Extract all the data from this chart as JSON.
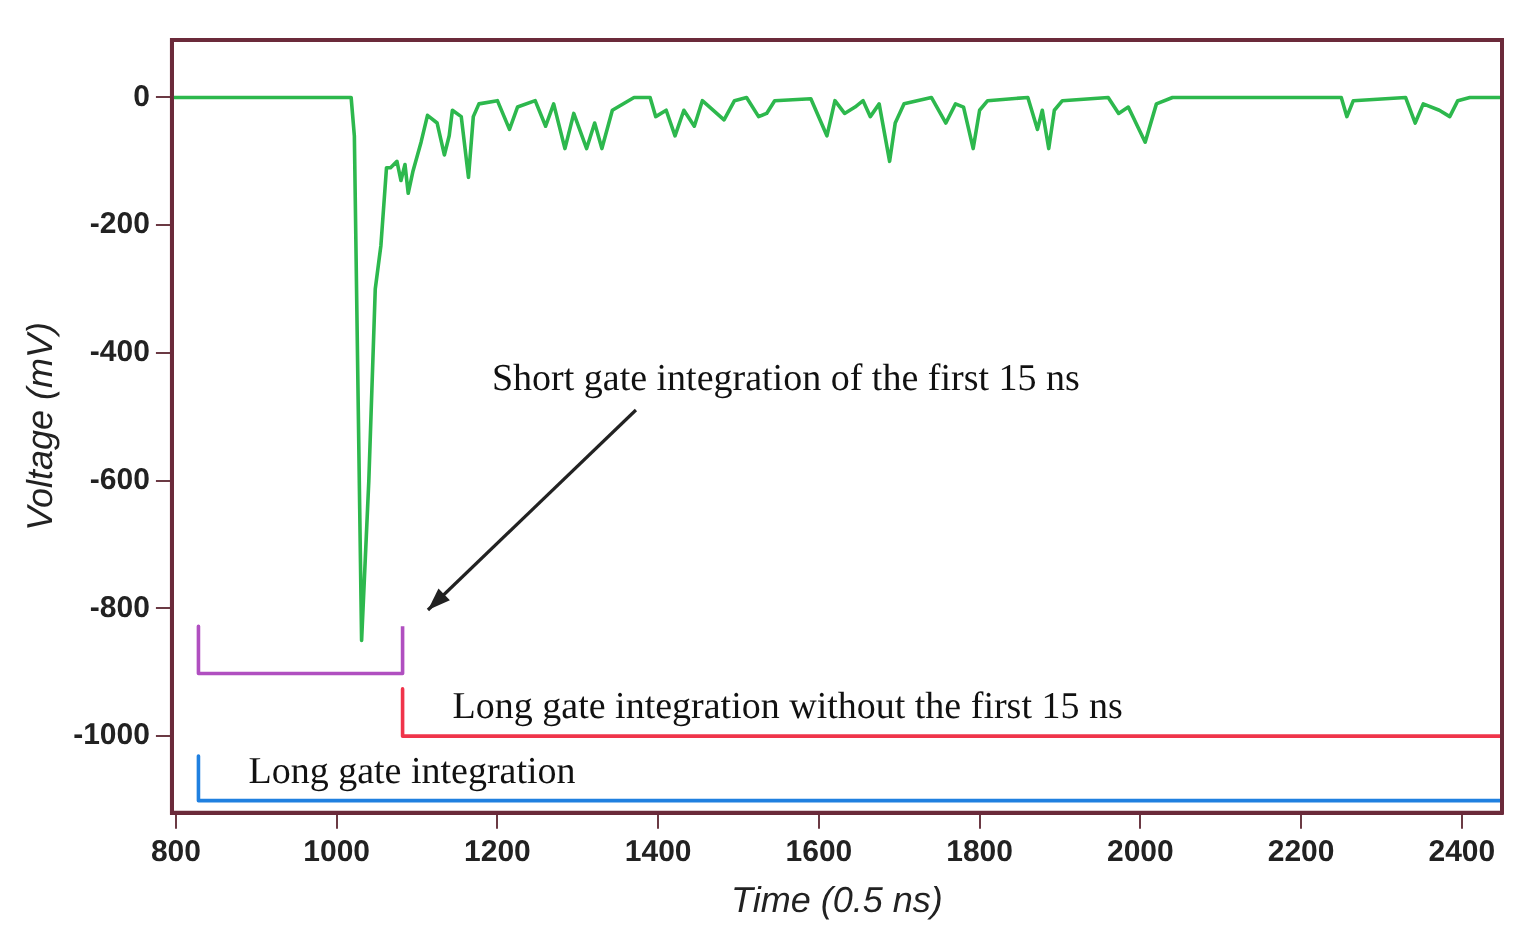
{
  "chart_data": {
    "type": "line",
    "xlabel": "Time (0.5 ns)",
    "ylabel": "Voltage (mV)",
    "xlim": [
      795,
      2450
    ],
    "ylim": [
      -1120,
      90
    ],
    "xticks": [
      800,
      1000,
      1200,
      1400,
      1600,
      1800,
      2000,
      2200,
      2400
    ],
    "yticks": [
      -1000,
      -800,
      -600,
      -400,
      -200,
      0
    ],
    "grid": false,
    "legend": false,
    "marker": "none",
    "line_style": "solid",
    "annotations": [
      "Short gate integration of the first 15 ns"
    ],
    "series": [
      {
        "color": "#2db84d",
        "x": [
          795,
          1018,
          1022,
          1027,
          1031,
          1040,
          1048,
          1055,
          1062,
          1067,
          1075,
          1080,
          1085,
          1089,
          1095,
          1105,
          1113,
          1125,
          1134,
          1140,
          1144,
          1155,
          1164,
          1170,
          1177,
          1200,
          1215,
          1225,
          1247,
          1260,
          1270,
          1284,
          1295,
          1311,
          1321,
          1330,
          1343,
          1370,
          1390,
          1397,
          1410,
          1421,
          1432,
          1445,
          1455,
          1482,
          1495,
          1510,
          1525,
          1535,
          1545,
          1590,
          1610,
          1620,
          1632,
          1645,
          1655,
          1664,
          1675,
          1688,
          1695,
          1706,
          1740,
          1758,
          1770,
          1780,
          1792,
          1800,
          1810,
          1860,
          1872,
          1878,
          1886,
          1893,
          1903,
          1960,
          1973,
          1985,
          2006,
          2020,
          2040,
          2250,
          2257,
          2265,
          2330,
          2342,
          2352,
          2372,
          2385,
          2395,
          2410,
          2450
        ],
        "values": [
          0,
          0,
          -60,
          -500,
          -850,
          -600,
          -300,
          -232,
          -110,
          -110,
          -100,
          -130,
          -105,
          -150,
          -115,
          -70,
          -28,
          -40,
          -90,
          -60,
          -20,
          -30,
          -125,
          -30,
          -10,
          -5,
          -50,
          -15,
          -5,
          -45,
          -10,
          -80,
          -25,
          -80,
          -40,
          -80,
          -20,
          0,
          0,
          -30,
          -20,
          -60,
          -20,
          -45,
          -5,
          -35,
          -5,
          0,
          -30,
          -25,
          -5,
          -2,
          -60,
          -5,
          -25,
          -15,
          -5,
          -30,
          -10,
          -100,
          -40,
          -10,
          0,
          -40,
          -10,
          -15,
          -80,
          -20,
          -5,
          0,
          -50,
          -20,
          -80,
          -20,
          -5,
          0,
          -25,
          -15,
          -70,
          -10,
          0,
          0,
          -30,
          -5,
          0,
          -40,
          -10,
          -20,
          -30,
          -5,
          0,
          0
        ]
      },
      {
        "color": "#b04fc0",
        "x": [
          828,
          828,
          1082,
          1082
        ],
        "values": [
          -828,
          -902,
          -902,
          -828
        ]
      },
      {
        "name": "Long gate integration without the first 15 ns",
        "color": "#f0344a",
        "x": [
          1082,
          1082,
          2450
        ],
        "values": [
          -926,
          -1000,
          -1000
        ]
      },
      {
        "name": "Long gate integration",
        "color": "#2080e0",
        "x": [
          828,
          828,
          2450
        ],
        "values": [
          -1031,
          -1101,
          -1101
        ]
      }
    ]
  }
}
